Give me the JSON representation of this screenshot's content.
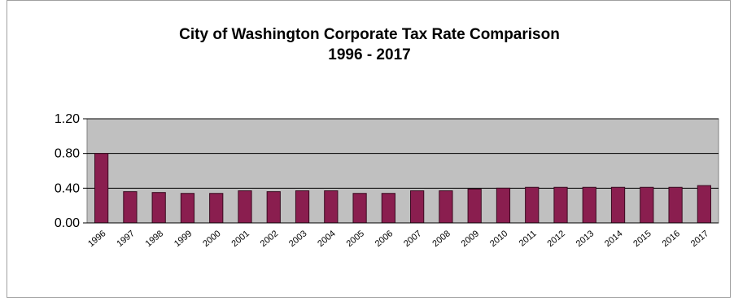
{
  "chart_data": {
    "type": "bar",
    "title": "City of Washington Corporate Tax Rate Comparison",
    "subtitle": "1996 - 2017",
    "xlabel": "",
    "ylabel": "",
    "categories": [
      "1996",
      "1997",
      "1998",
      "1999",
      "2000",
      "2001",
      "2002",
      "2003",
      "2004",
      "2005",
      "2006",
      "2007",
      "2008",
      "2009",
      "2010",
      "2011",
      "2012",
      "2013",
      "2014",
      "2015",
      "2016",
      "2017"
    ],
    "values": [
      0.8,
      0.36,
      0.35,
      0.34,
      0.34,
      0.37,
      0.36,
      0.37,
      0.37,
      0.34,
      0.34,
      0.37,
      0.37,
      0.39,
      0.4,
      0.41,
      0.41,
      0.41,
      0.41,
      0.41,
      0.41,
      0.43
    ],
    "ylim": [
      0,
      1.2
    ],
    "yticks": [
      "0.00",
      "0.40",
      "0.80",
      "1.20"
    ],
    "grid": true,
    "legend": "none",
    "colors": {
      "bar_fill": "#8a1e4f",
      "bar_edge": "#3a0a20",
      "plot_bg": "#c0c0c0",
      "gridline": "#000000"
    }
  }
}
